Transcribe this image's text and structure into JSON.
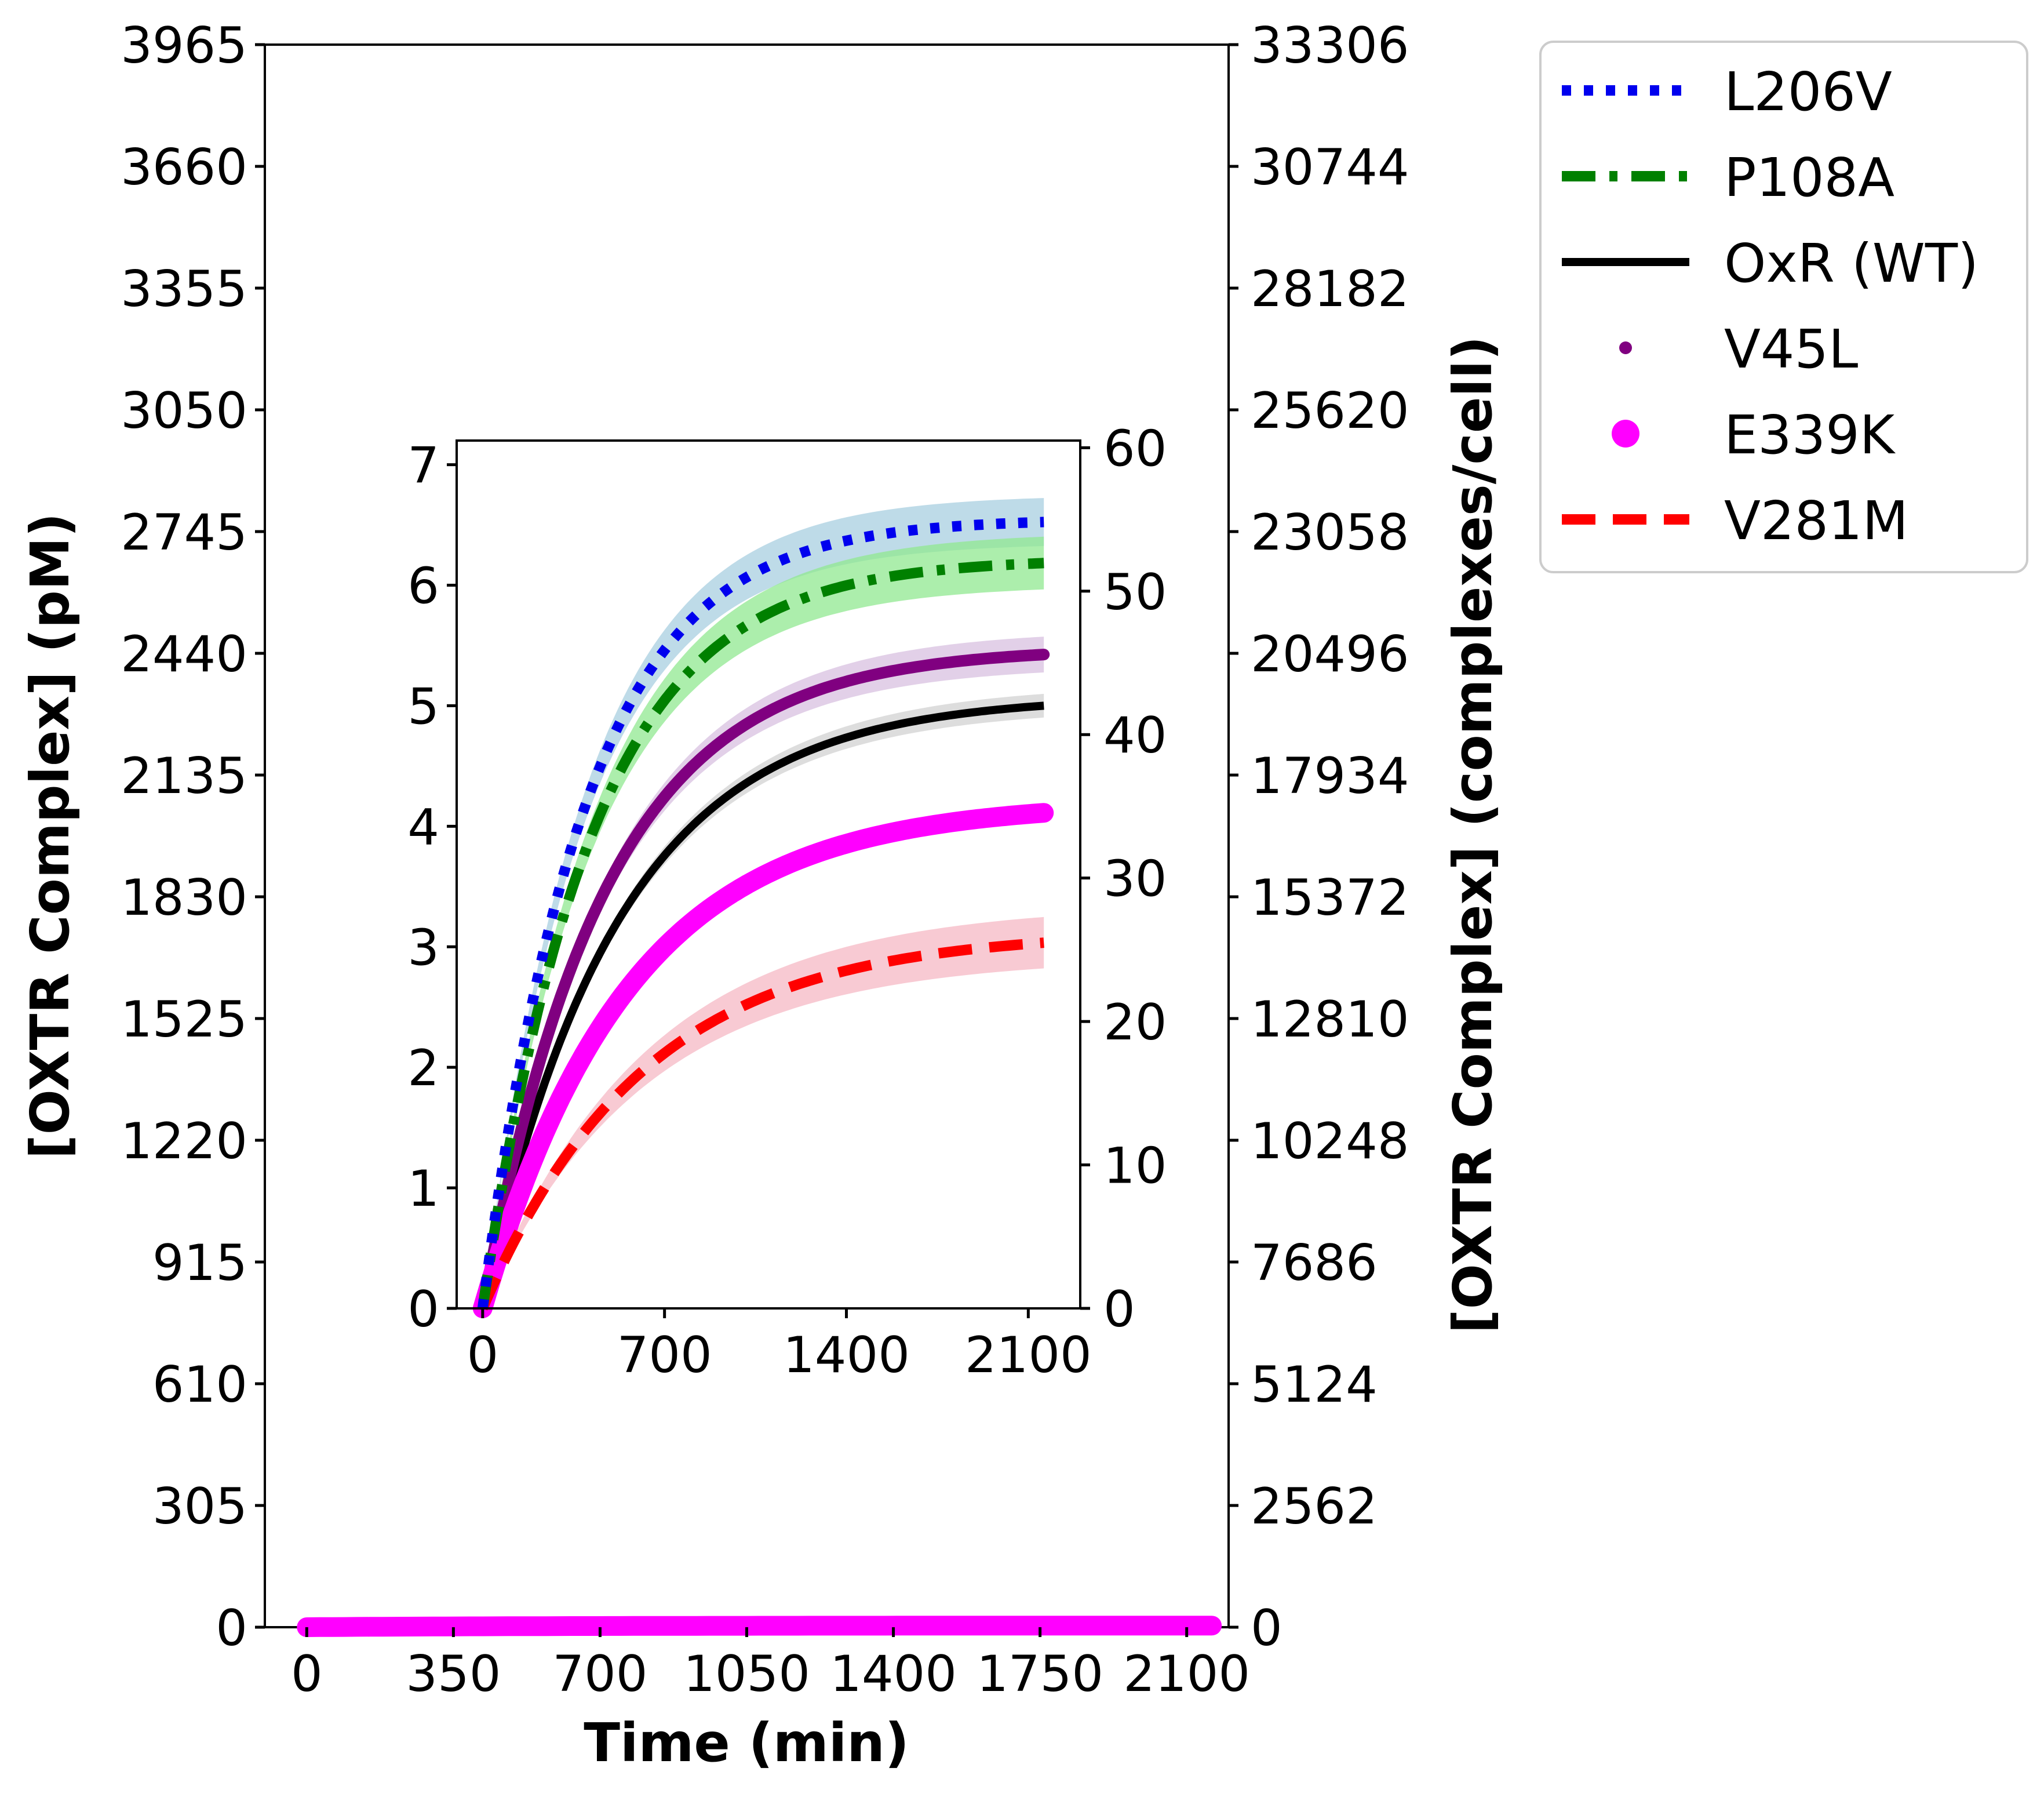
{
  "chart_data": [
    {
      "type": "line",
      "role": "main",
      "xlabel": "Time (min)",
      "ylabel": "[OXTR Complex] (pM)",
      "ylabel_right": "[OXTR Complex] (complexes/cell)",
      "xlim": [
        -100,
        2200
      ],
      "ylim": [
        0,
        3965
      ],
      "ylim_right": [
        0,
        33306
      ],
      "xticks": [
        0,
        350,
        700,
        1050,
        1400,
        1750,
        2100
      ],
      "yticks": [
        0,
        305,
        610,
        915,
        1220,
        1525,
        1830,
        2135,
        2440,
        2745,
        3050,
        3355,
        3660,
        3965
      ],
      "yticks_right": [
        0,
        2562,
        5124,
        7686,
        10248,
        12810,
        15372,
        17934,
        20496,
        23058,
        25620,
        28182,
        30744,
        33306
      ],
      "series_note": "all six series lie near 0 pM on the main axis scale (max ~6.6 pM)"
    },
    {
      "type": "line",
      "role": "inset",
      "xlabel": "",
      "ylabel": "",
      "xlim": [
        -100,
        2300
      ],
      "ylim": [
        0,
        7.2
      ],
      "ylim_right": [
        0,
        60.5
      ],
      "xticks": [
        0,
        700,
        1400,
        2100
      ],
      "yticks": [
        0,
        1,
        2,
        3,
        4,
        5,
        6,
        7
      ],
      "yticks_right": [
        0,
        10,
        20,
        30,
        40,
        50,
        60
      ],
      "t_end": 2160,
      "series": [
        {
          "name": "L206V",
          "color": "#0000ee",
          "band": "#a8cfe0",
          "style": "dotted",
          "plateau": 6.55,
          "tau": 390,
          "band_halfwidth": 0.2
        },
        {
          "name": "P108A",
          "color": "#008000",
          "band": "#90e890",
          "style": "dashdot",
          "plateau": 6.22,
          "tau": 420,
          "band_halfwidth": 0.22
        },
        {
          "name": "OxR (WT)",
          "color": "#000000",
          "band": "#d2d2d2",
          "style": "solid",
          "plateau": 5.08,
          "tau": 520,
          "band_halfwidth": 0.1
        },
        {
          "name": "V45L",
          "color": "#800080",
          "band": "#d8c0e0",
          "style": "marker-small",
          "plateau": 5.48,
          "tau": 470,
          "band_halfwidth": 0.15
        },
        {
          "name": "E339K",
          "color": "#ff00ff",
          "band": "#e3a8e3",
          "style": "marker-large",
          "plateau": 4.2,
          "tau": 560,
          "band_halfwidth": 0.06
        },
        {
          "name": "V281M",
          "color": "#ff0000",
          "band": "#f6b8c4",
          "style": "dashed",
          "plateau": 3.13,
          "tau": 620,
          "band_halfwidth": 0.22
        }
      ]
    }
  ],
  "legend": {
    "position": "right of figure, top",
    "items": [
      {
        "label": "L206V",
        "color": "#0000ee",
        "style": "dotted"
      },
      {
        "label": "P108A",
        "color": "#008000",
        "style": "dashdot"
      },
      {
        "label": "OxR (WT)",
        "color": "#000000",
        "style": "solid"
      },
      {
        "label": "V45L",
        "color": "#800080",
        "style": "marker-small"
      },
      {
        "label": "E339K",
        "color": "#ff00ff",
        "style": "marker-large"
      },
      {
        "label": "V281M",
        "color": "#ff0000",
        "style": "dashed"
      }
    ]
  }
}
